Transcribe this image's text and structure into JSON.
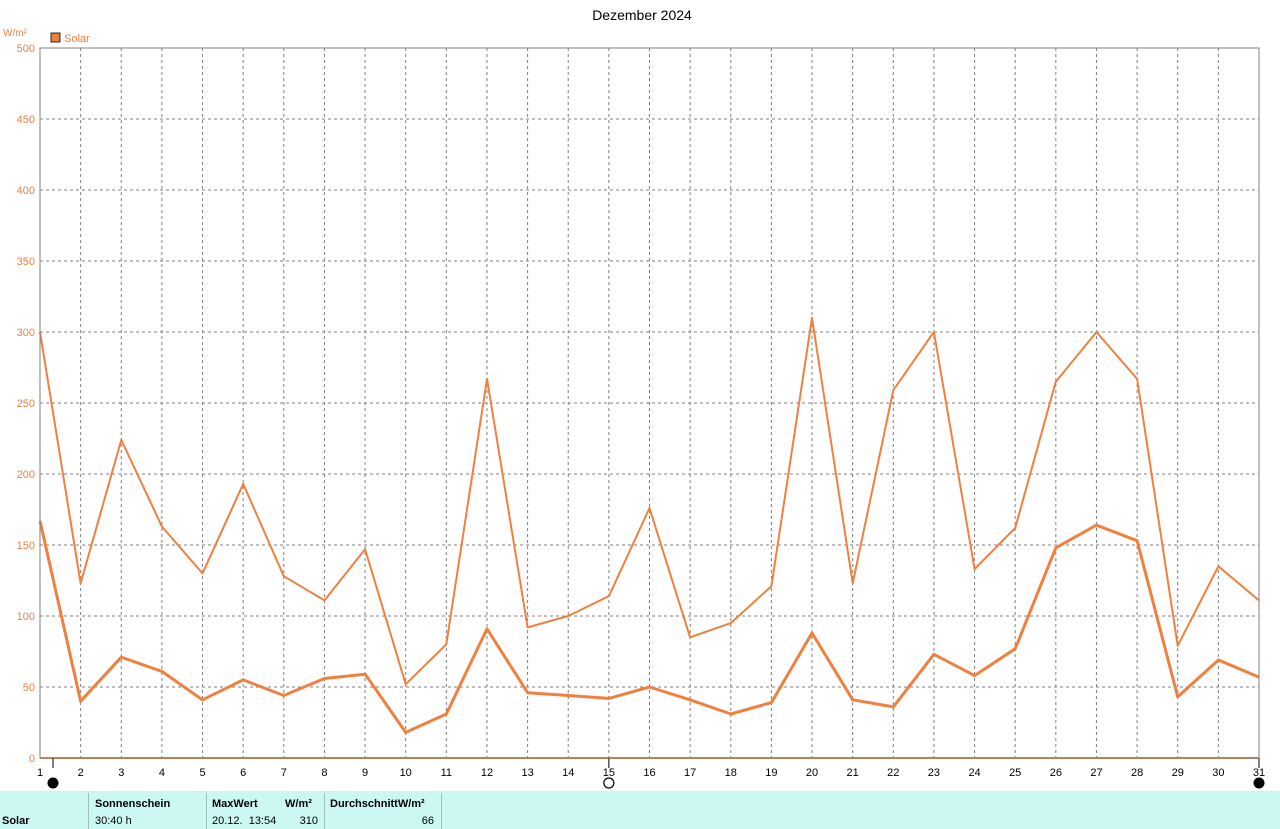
{
  "chart_data": {
    "type": "line",
    "title": "Dezember 2024",
    "ylabel": "W/m²",
    "ylim": [
      0,
      500
    ],
    "yticks": [
      0,
      50,
      100,
      150,
      200,
      250,
      300,
      350,
      400,
      450,
      500
    ],
    "x": [
      1,
      2,
      3,
      4,
      5,
      6,
      7,
      8,
      9,
      10,
      11,
      12,
      13,
      14,
      15,
      16,
      17,
      18,
      19,
      20,
      21,
      22,
      23,
      24,
      25,
      26,
      27,
      28,
      29,
      30,
      31
    ],
    "legend": {
      "label": "Solar",
      "position": "top-left"
    },
    "grid": true,
    "series": [
      {
        "name": "Solar",
        "role": "max",
        "color": "#f08040",
        "values": [
          300,
          123,
          224,
          163,
          130,
          193,
          128,
          111,
          147,
          52,
          80,
          267,
          92,
          100,
          114,
          176,
          85,
          95,
          121,
          310,
          123,
          259,
          300,
          133,
          162,
          265,
          300,
          267,
          79,
          135,
          111
        ]
      },
      {
        "name": "Solar",
        "role": "avg",
        "color": "#f08040",
        "values": [
          167,
          40,
          71,
          61,
          41,
          55,
          44,
          56,
          59,
          18,
          31,
          91,
          46,
          44,
          42,
          50,
          41,
          31,
          39,
          88,
          41,
          36,
          73,
          58,
          77,
          148,
          164,
          153,
          43,
          69,
          57
        ]
      }
    ],
    "moon_phases": [
      {
        "day": 1,
        "phase": "new-moon"
      },
      {
        "day": 15,
        "phase": "full-moon"
      },
      {
        "day": 31,
        "phase": "new-moon"
      }
    ]
  },
  "footer": {
    "row_label": "Solar",
    "sunshine_header": "Sonnenschein",
    "sunshine_value": "30:40 h",
    "max_header": "MaxWert",
    "max_unit": "W/m²",
    "max_datetime": "20.12.  13:54",
    "max_value": "310",
    "avg_header": "DurchschnittW/m²",
    "avg_value": "66"
  }
}
